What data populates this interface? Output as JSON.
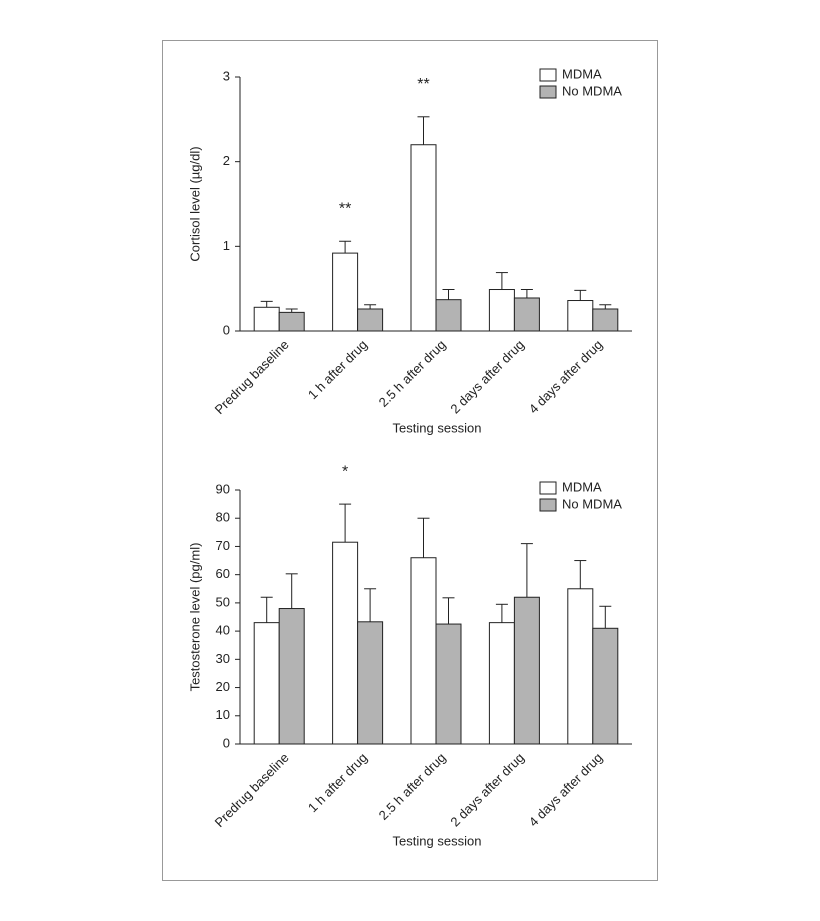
{
  "chart_data": [
    {
      "type": "bar",
      "ylabel": "Cortisol level (µg/dl)",
      "xlabel": "Testing session",
      "categories": [
        "Predrug baseline",
        "1 h after drug",
        "2.5 h after drug",
        "2 days after drug",
        "4 days after drug"
      ],
      "series": [
        {
          "name": "MDMA",
          "color": "#ffffff",
          "values": [
            0.28,
            0.92,
            2.2,
            0.49,
            0.36
          ],
          "errors": [
            0.07,
            0.14,
            0.33,
            0.2,
            0.12
          ]
        },
        {
          "name": "No MDMA",
          "color": "#b3b3b3",
          "values": [
            0.22,
            0.26,
            0.37,
            0.39,
            0.26
          ],
          "errors": [
            0.04,
            0.05,
            0.12,
            0.1,
            0.05
          ]
        }
      ],
      "annotations": [
        {
          "text": "**",
          "category": "1 h after drug"
        },
        {
          "text": "**",
          "category": "2.5 h after drug"
        }
      ],
      "ylim": [
        0,
        3
      ],
      "yticks": [
        0,
        1,
        2,
        3
      ],
      "legend": "upper right"
    },
    {
      "type": "bar",
      "ylabel": "Testosterone level (pg/ml)",
      "xlabel": "Testing session",
      "categories": [
        "Predrug baseline",
        "1 h after drug",
        "2.5 h after drug",
        "2 days after drug",
        "4 days after drug"
      ],
      "series": [
        {
          "name": "MDMA",
          "color": "#ffffff",
          "values": [
            43,
            71.5,
            66,
            43,
            55
          ],
          "errors": [
            9,
            13.5,
            14,
            6.5,
            10
          ]
        },
        {
          "name": "No MDMA",
          "color": "#b3b3b3",
          "values": [
            48,
            43.3,
            42.5,
            52,
            41
          ],
          "errors": [
            12.3,
            11.7,
            9.3,
            19,
            7.8
          ]
        }
      ],
      "annotations": [
        {
          "text": "*",
          "category": "1 h after drug"
        }
      ],
      "ylim": [
        0,
        90
      ],
      "yticks": [
        0,
        10,
        20,
        30,
        40,
        50,
        60,
        70,
        80,
        90
      ],
      "legend": "upper right"
    }
  ]
}
